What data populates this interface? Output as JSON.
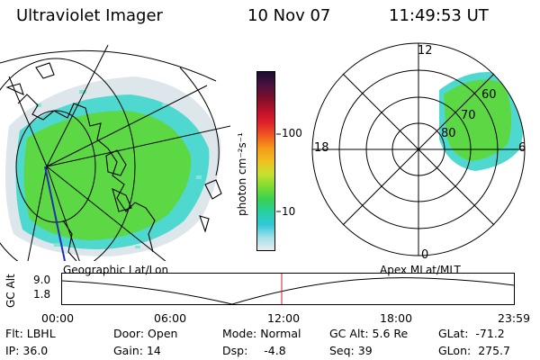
{
  "header": {
    "title": "Ultraviolet Imager",
    "date": "10 Nov 07",
    "time": "11:49:53 UT"
  },
  "colorbar": {
    "unit_label": "photon cm⁻²s⁻¹",
    "ticks": [
      "100",
      "10"
    ],
    "colors": [
      "#1a0d2e",
      "#4a1040",
      "#7a0f2a",
      "#b8102a",
      "#e0202a",
      "#f05a20",
      "#f59a18",
      "#f0c020",
      "#c8e030",
      "#7ddc30",
      "#3ad050",
      "#28d0a0",
      "#30c8d8",
      "#a0e0e8",
      "#e8ecee"
    ]
  },
  "left_map": {
    "label": "Geographic Lat/Lon"
  },
  "right_map": {
    "label": "Apex  MLat/MLT",
    "mlt_labels": [
      "12",
      "18",
      "6",
      "0"
    ],
    "mlat_labels": [
      "60",
      "70",
      "80"
    ]
  },
  "altitude_plot": {
    "ylabel": "GC Alt",
    "yticks": [
      "9.0",
      "1.8"
    ],
    "xticks": [
      "00:00",
      "06:00",
      "12:00",
      "18:00",
      "23:59"
    ],
    "current_time_marker": "11:49:53"
  },
  "status": {
    "flt_label": "Flt:",
    "flt_value": "LBHL",
    "ip_label": "IP:",
    "ip_value": "36.0",
    "door_label": "Door:",
    "door_value": "Open",
    "gain_label": "Gain:",
    "gain_value": "14",
    "mode_label": "Mode:",
    "mode_value": "Normal",
    "dsp_label": "Dsp:",
    "dsp_value": "-4.8",
    "gcalt_label": "GC Alt:",
    "gcalt_value": "5.6 Re",
    "seq_label": "Seq:",
    "seq_value": "39",
    "glat_label": "GLat:",
    "glat_value": "-71.2",
    "glon_label": "GLon:",
    "glon_value": "275.7"
  }
}
